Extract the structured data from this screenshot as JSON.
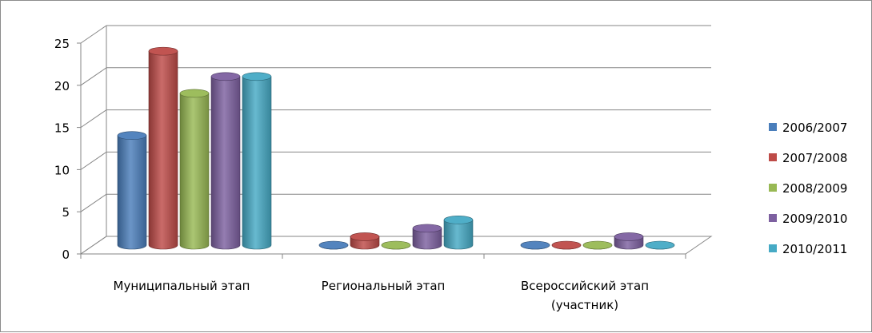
{
  "chart_data": {
    "type": "bar",
    "title": "",
    "xlabel": "",
    "ylabel": "",
    "ylim": [
      0,
      25
    ],
    "yticks": [
      0,
      5,
      10,
      15,
      20,
      25
    ],
    "grid": true,
    "legend_position": "right",
    "categories": [
      [
        "Муниципальный этап"
      ],
      [
        "Региональный этап"
      ],
      [
        "Всероссийский этап",
        "(участник)"
      ]
    ],
    "series": [
      {
        "name": "2006/2007",
        "color": "#4a7ebb",
        "values": [
          13,
          0,
          0
        ]
      },
      {
        "name": "2007/2008",
        "color": "#be4b48",
        "values": [
          23,
          1,
          0
        ]
      },
      {
        "name": "2008/2009",
        "color": "#98b954",
        "values": [
          18,
          0,
          0
        ]
      },
      {
        "name": "2009/2010",
        "color": "#7d60a0",
        "values": [
          20,
          2,
          1
        ]
      },
      {
        "name": "2010/2011",
        "color": "#46aac5",
        "values": [
          20,
          3,
          0
        ]
      }
    ]
  }
}
